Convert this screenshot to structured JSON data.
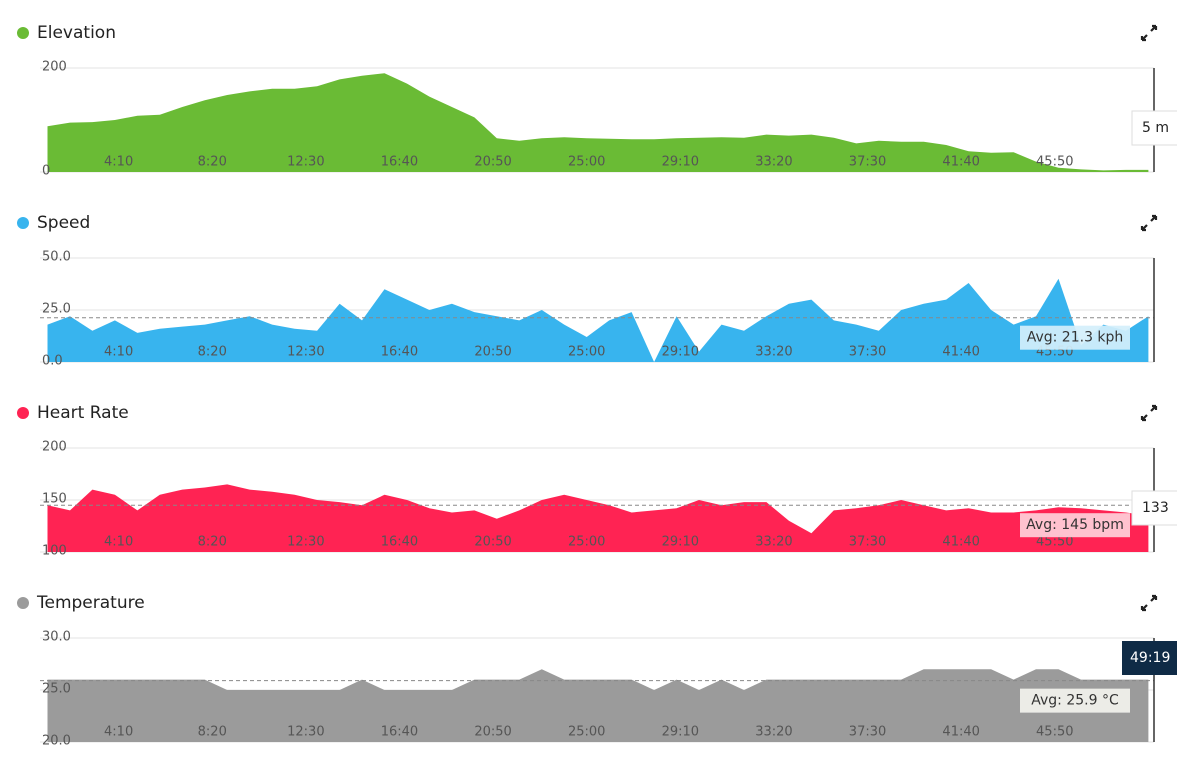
{
  "chart_data": [
    {
      "type": "area",
      "title": "Elevation",
      "color": "#6abb35",
      "x": [
        60,
        120,
        180,
        240,
        300,
        360,
        420,
        480,
        540,
        600,
        660,
        720,
        780,
        840,
        900,
        960,
        1020,
        1080,
        1140,
        1200,
        1260,
        1320,
        1380,
        1440,
        1500,
        1560,
        1620,
        1680,
        1740,
        1800,
        1860,
        1920,
        1980,
        2040,
        2100,
        2160,
        2220,
        2280,
        2340,
        2400,
        2460,
        2520,
        2580,
        2640,
        2700,
        2760,
        2820,
        2880,
        2940,
        3000
      ],
      "values": [
        88,
        95,
        96,
        100,
        108,
        110,
        125,
        138,
        148,
        155,
        160,
        160,
        165,
        178,
        185,
        190,
        170,
        145,
        125,
        105,
        65,
        60,
        65,
        67,
        65,
        64,
        63,
        63,
        65,
        66,
        67,
        66,
        72,
        70,
        72,
        66,
        55,
        60,
        58,
        58,
        52,
        40,
        37,
        38,
        20,
        8,
        5,
        3,
        4,
        4
      ],
      "xlim": [
        40,
        3015
      ],
      "xticks": [
        {
          "value": 250,
          "label": "4:10"
        },
        {
          "value": 500,
          "label": "8:20"
        },
        {
          "value": 750,
          "label": "12:30"
        },
        {
          "value": 1000,
          "label": "16:40"
        },
        {
          "value": 1250,
          "label": "20:50"
        },
        {
          "value": 1500,
          "label": "25:00"
        },
        {
          "value": 1750,
          "label": "29:10"
        },
        {
          "value": 2000,
          "label": "33:20"
        },
        {
          "value": 2250,
          "label": "37:30"
        },
        {
          "value": 2500,
          "label": "41:40"
        },
        {
          "value": 2750,
          "label": "45:50"
        }
      ],
      "ylim": [
        0,
        200
      ],
      "yticks": [
        0,
        200
      ],
      "grid": true,
      "tooltip": "5 m"
    },
    {
      "type": "area",
      "title": "Speed",
      "color": "#38b4ee",
      "x": [
        60,
        120,
        180,
        240,
        300,
        360,
        420,
        480,
        540,
        600,
        660,
        720,
        780,
        840,
        900,
        960,
        1020,
        1080,
        1140,
        1200,
        1260,
        1320,
        1380,
        1440,
        1500,
        1560,
        1620,
        1680,
        1740,
        1800,
        1860,
        1920,
        1980,
        2040,
        2100,
        2160,
        2220,
        2280,
        2340,
        2400,
        2460,
        2520,
        2580,
        2640,
        2700,
        2760,
        2820,
        2880,
        2940,
        3000
      ],
      "values": [
        18,
        22,
        15,
        20,
        14,
        16,
        17,
        18,
        20,
        22,
        18,
        16,
        15,
        28,
        20,
        35,
        30,
        25,
        28,
        24,
        22,
        20,
        25,
        18,
        12,
        20,
        24,
        0,
        22,
        5,
        18,
        15,
        22,
        28,
        30,
        20,
        18,
        15,
        25,
        28,
        30,
        38,
        25,
        18,
        22,
        40,
        8,
        18,
        15,
        22
      ],
      "xlim": [
        40,
        3015
      ],
      "xticks": [
        {
          "value": 250,
          "label": "4:10"
        },
        {
          "value": 500,
          "label": "8:20"
        },
        {
          "value": 750,
          "label": "12:30"
        },
        {
          "value": 1000,
          "label": "16:40"
        },
        {
          "value": 1250,
          "label": "20:50"
        },
        {
          "value": 1500,
          "label": "25:00"
        },
        {
          "value": 1750,
          "label": "29:10"
        },
        {
          "value": 2000,
          "label": "33:20"
        },
        {
          "value": 2250,
          "label": "37:30"
        },
        {
          "value": 2500,
          "label": "41:40"
        },
        {
          "value": 2750,
          "label": "45:50"
        }
      ],
      "ylim": [
        0,
        50
      ],
      "yticks": [
        {
          "value": 0,
          "label": "0.0"
        },
        {
          "value": 25,
          "label": "25.0"
        },
        {
          "value": 50,
          "label": "50.0"
        }
      ],
      "grid": true,
      "avg": 21.3,
      "avg_label": "Avg: 21.3 kph"
    },
    {
      "type": "area",
      "title": "Heart Rate",
      "color": "#ff2353",
      "x": [
        60,
        120,
        180,
        240,
        300,
        360,
        420,
        480,
        540,
        600,
        660,
        720,
        780,
        840,
        900,
        960,
        1020,
        1080,
        1140,
        1200,
        1260,
        1320,
        1380,
        1440,
        1500,
        1560,
        1620,
        1680,
        1740,
        1800,
        1860,
        1920,
        1980,
        2040,
        2100,
        2160,
        2220,
        2280,
        2340,
        2400,
        2460,
        2520,
        2580,
        2640,
        2700,
        2760,
        2820,
        2880,
        2940,
        3000
      ],
      "values": [
        145,
        140,
        160,
        155,
        140,
        155,
        160,
        162,
        165,
        160,
        158,
        155,
        150,
        148,
        145,
        155,
        150,
        142,
        138,
        140,
        132,
        140,
        150,
        155,
        150,
        145,
        138,
        140,
        142,
        150,
        145,
        148,
        148,
        130,
        118,
        140,
        142,
        145,
        150,
        145,
        140,
        142,
        138,
        138,
        140,
        143,
        142,
        140,
        138,
        135
      ],
      "xlim": [
        40,
        3015
      ],
      "xticks": [
        {
          "value": 250,
          "label": "4:10"
        },
        {
          "value": 500,
          "label": "8:20"
        },
        {
          "value": 750,
          "label": "12:30"
        },
        {
          "value": 1000,
          "label": "16:40"
        },
        {
          "value": 1250,
          "label": "20:50"
        },
        {
          "value": 1500,
          "label": "25:00"
        },
        {
          "value": 1750,
          "label": "29:10"
        },
        {
          "value": 2000,
          "label": "33:20"
        },
        {
          "value": 2250,
          "label": "37:30"
        },
        {
          "value": 2500,
          "label": "41:40"
        },
        {
          "value": 2750,
          "label": "45:50"
        }
      ],
      "ylim": [
        100,
        200
      ],
      "yticks": [
        100,
        150,
        200
      ],
      "grid": true,
      "avg": 145,
      "avg_label": "Avg: 145 bpm",
      "tooltip": "133"
    },
    {
      "type": "area",
      "title": "Temperature",
      "color": "#9b9b9b",
      "x": [
        60,
        120,
        180,
        240,
        300,
        360,
        420,
        480,
        540,
        600,
        660,
        720,
        780,
        840,
        900,
        960,
        1020,
        1080,
        1140,
        1200,
        1260,
        1320,
        1380,
        1440,
        1500,
        1560,
        1620,
        1680,
        1740,
        1800,
        1860,
        1920,
        1980,
        2040,
        2100,
        2160,
        2220,
        2280,
        2340,
        2400,
        2460,
        2520,
        2580,
        2640,
        2700,
        2760,
        2820,
        2880,
        2940,
        3000
      ],
      "values": [
        26,
        26,
        26,
        26,
        26,
        26,
        26,
        26,
        25,
        25,
        25,
        25,
        25,
        25,
        26,
        25,
        25,
        25,
        25,
        26,
        26,
        26,
        27,
        26,
        26,
        26,
        26,
        25,
        26,
        25,
        26,
        25,
        26,
        26,
        26,
        26,
        26,
        26,
        26,
        27,
        27,
        27,
        27,
        26,
        27,
        27,
        26,
        26,
        26,
        26
      ],
      "xlim": [
        40,
        3015
      ],
      "xticks": [
        {
          "value": 250,
          "label": "4:10"
        },
        {
          "value": 500,
          "label": "8:20"
        },
        {
          "value": 750,
          "label": "12:30"
        },
        {
          "value": 1000,
          "label": "16:40"
        },
        {
          "value": 1250,
          "label": "20:50"
        },
        {
          "value": 1500,
          "label": "25:00"
        },
        {
          "value": 1750,
          "label": "29:10"
        },
        {
          "value": 2000,
          "label": "33:20"
        },
        {
          "value": 2250,
          "label": "37:30"
        },
        {
          "value": 2500,
          "label": "41:40"
        },
        {
          "value": 2750,
          "label": "45:50"
        }
      ],
      "ylim": [
        20,
        30
      ],
      "yticks": [
        {
          "value": 20,
          "label": "20.0"
        },
        {
          "value": 25,
          "label": "25.0"
        },
        {
          "value": 30,
          "label": "30.0"
        }
      ],
      "grid": true,
      "avg": 25.9,
      "avg_label": "Avg: 25.9 °C",
      "tooltip": "49:19"
    }
  ]
}
